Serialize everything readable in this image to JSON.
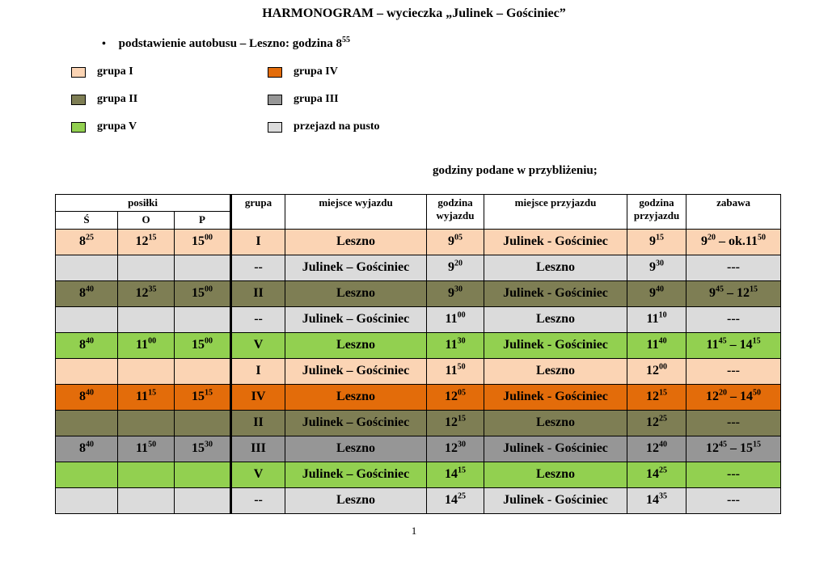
{
  "document": {
    "title": "HARMONOGRAM – wycieczka „Julinek – Gościniec”",
    "bullet_text": "podstawienie autobusu – Leszno:  godzina 8^{55}",
    "note": "godziny podane w przybliżeniu;",
    "page_number": "1"
  },
  "colors": {
    "group1": "#FBD4B4",
    "group2": "#7E7E54",
    "group3": "#969696",
    "group4": "#E36C0A",
    "group5": "#92D050",
    "empty_run": "#DBDBDB",
    "header_bg": "#FFFFFF",
    "border": "#000000"
  },
  "legend": [
    {
      "label": "grupa I",
      "color_key": "group1"
    },
    {
      "label": "grupa IV",
      "color_key": "group4"
    },
    {
      "label": "grupa II",
      "color_key": "group2"
    },
    {
      "label": "grupa III",
      "color_key": "group3"
    },
    {
      "label": "grupa V",
      "color_key": "group5"
    },
    {
      "label": "przejazd na pusto",
      "color_key": "empty_run"
    }
  ],
  "table": {
    "header": {
      "posilki": "posiłki",
      "sub": [
        "Ś",
        "O",
        "P"
      ],
      "cols": [
        "grupa",
        "miejsce wyjazdu",
        "godzina wyjazdu",
        "miejsce przyjazdu",
        "godzina przyjazdu",
        "zabawa"
      ]
    },
    "rows": [
      {
        "color_key": "group1",
        "cells": [
          "8^{25}",
          "12^{15}",
          "15^{00}",
          "I",
          "Leszno",
          "9^{05}",
          "Julinek - Gościniec",
          "9^{15}",
          "9^{20} – ok.11^{50}"
        ]
      },
      {
        "color_key": "empty_run",
        "cells": [
          "",
          "",
          "",
          "--",
          "Julinek – Gościniec",
          "9^{20}",
          "Leszno",
          "9^{30}",
          "---"
        ]
      },
      {
        "color_key": "group2",
        "cells": [
          "8^{40}",
          "12^{35}",
          "15^{00}",
          "II",
          "Leszno",
          "9^{30}",
          "Julinek - Gościniec",
          "9^{40}",
          "9^{45} – 12^{15}"
        ]
      },
      {
        "color_key": "empty_run",
        "cells": [
          "",
          "",
          "",
          "--",
          "Julinek – Gościniec",
          "11^{00}",
          "Leszno",
          "11^{10}",
          "---"
        ]
      },
      {
        "color_key": "group5",
        "cells": [
          "8^{40}",
          "11^{00}",
          "15^{00}",
          "V",
          "Leszno",
          "11^{30}",
          "Julinek - Gościniec",
          "11^{40}",
          "11^{45} – 14^{15}"
        ]
      },
      {
        "color_key": "group1",
        "cells": [
          "",
          "",
          "",
          "I",
          "Julinek – Gościniec",
          "11^{50}",
          "Leszno",
          "12^{00}",
          "---"
        ]
      },
      {
        "color_key": "group4",
        "cells": [
          "8^{40}",
          "11^{15}",
          "15^{15}",
          "IV",
          "Leszno",
          "12^{05}",
          "Julinek - Gościniec",
          "12^{15}",
          "12^{20} – 14^{50}"
        ]
      },
      {
        "color_key": "group2",
        "cells": [
          "",
          "",
          "",
          "II",
          "Julinek – Gościniec",
          "12^{15}",
          "Leszno",
          "12^{25}",
          "---"
        ]
      },
      {
        "color_key": "group3",
        "cells": [
          "8^{40}",
          "11^{50}",
          "15^{30}",
          "III",
          "Leszno",
          "12^{30}",
          "Julinek - Gościniec",
          "12^{40}",
          "12^{45} – 15^{15}"
        ]
      },
      {
        "color_key": "group5",
        "cells": [
          "",
          "",
          "",
          "V",
          "Julinek – Gościniec",
          "14^{15}",
          "Leszno",
          "14^{25}",
          "---"
        ]
      },
      {
        "color_key": "empty_run",
        "cells": [
          "",
          "",
          "",
          "--",
          "Leszno",
          "14^{25}",
          "Julinek - Gościniec",
          "14^{35}",
          "---"
        ]
      }
    ]
  }
}
